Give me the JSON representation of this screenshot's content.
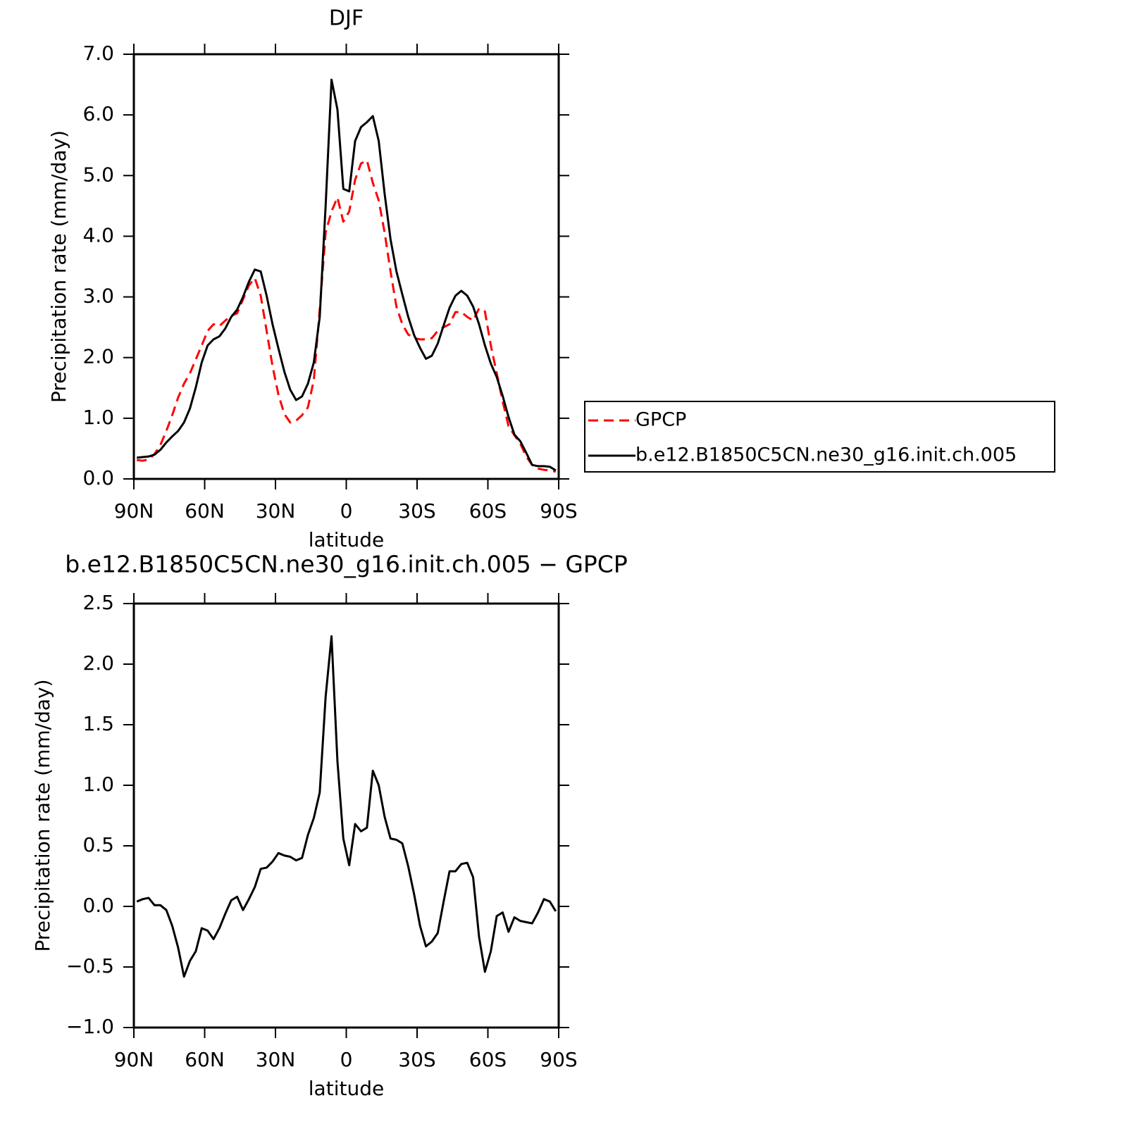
{
  "chart_data": [
    {
      "type": "line",
      "title": "DJF",
      "xlabel": "latitude",
      "ylabel": "Precipitation rate (mm/day)",
      "x": [
        88.75,
        86.25,
        83.75,
        81.25,
        78.75,
        76.25,
        73.75,
        71.25,
        68.75,
        66.25,
        63.75,
        61.25,
        58.75,
        56.25,
        53.75,
        51.25,
        48.75,
        46.25,
        43.75,
        41.25,
        38.75,
        36.25,
        33.75,
        31.25,
        28.75,
        26.25,
        23.75,
        21.25,
        18.75,
        16.25,
        13.75,
        11.25,
        8.75,
        6.25,
        3.75,
        1.25,
        -1.25,
        -3.75,
        -6.25,
        -8.75,
        -11.25,
        -13.75,
        -16.25,
        -18.75,
        -21.25,
        -23.75,
        -26.25,
        -28.75,
        -31.25,
        -33.75,
        -36.25,
        -38.75,
        -41.25,
        -43.75,
        -46.25,
        -48.75,
        -51.25,
        -53.75,
        -56.25,
        -58.75,
        -61.25,
        -63.75,
        -66.25,
        -68.75,
        -71.25,
        -73.75,
        -76.25,
        -78.75,
        -81.25,
        -83.75,
        -86.25,
        -88.75
      ],
      "xlim": [
        90,
        -90
      ],
      "xticks": [
        {
          "value": 90,
          "label": "90N"
        },
        {
          "value": 60,
          "label": "60N"
        },
        {
          "value": 30,
          "label": "30N"
        },
        0,
        {
          "value": -30,
          "label": "30S"
        },
        {
          "value": -60,
          "label": "60S"
        },
        {
          "value": -90,
          "label": "90S"
        }
      ],
      "ylim": [
        0,
        7
      ],
      "yticks": [
        {
          "value": 0,
          "label": "0.0"
        },
        {
          "value": 1,
          "label": "1.0"
        },
        {
          "value": 2,
          "label": "2.0"
        },
        {
          "value": 3,
          "label": "3.0"
        },
        {
          "value": 4,
          "label": "4.0"
        },
        {
          "value": 5,
          "label": "5.0"
        },
        {
          "value": 6,
          "label": "6.0"
        },
        {
          "value": 7,
          "label": "7.0"
        }
      ],
      "legend": "right",
      "series": [
        {
          "name": "GPCP",
          "color": "#ff0000",
          "linestyle": "dashed",
          "values": [
            0.31,
            0.3,
            0.32,
            0.41,
            0.56,
            0.79,
            1.05,
            1.34,
            1.57,
            1.74,
            1.97,
            2.2,
            2.44,
            2.55,
            2.52,
            2.61,
            2.69,
            2.73,
            2.96,
            3.19,
            3.31,
            3.02,
            2.44,
            1.86,
            1.39,
            1.07,
            0.93,
            0.96,
            1.05,
            1.18,
            1.63,
            2.79,
            4.06,
            4.41,
            4.64,
            4.24,
            4.41,
            4.93,
            5.2,
            5.25,
            4.88,
            4.59,
            4.06,
            3.42,
            2.84,
            2.55,
            2.38,
            2.32,
            2.3,
            2.3,
            2.32,
            2.44,
            2.5,
            2.55,
            2.75,
            2.75,
            2.67,
            2.61,
            2.81,
            2.76,
            2.2,
            1.74,
            1.28,
            0.87,
            0.72,
            0.58,
            0.37,
            0.23,
            0.17,
            0.15,
            0.14,
            0.12
          ]
        },
        {
          "name": "b.e12.B1850C5CN.ne30_g16.init.ch.005",
          "color": "#000000",
          "linestyle": "solid",
          "values": [
            0.35,
            0.36,
            0.37,
            0.4,
            0.48,
            0.6,
            0.7,
            0.79,
            0.93,
            1.16,
            1.51,
            1.92,
            2.2,
            2.3,
            2.35,
            2.48,
            2.67,
            2.79,
            3.0,
            3.25,
            3.45,
            3.42,
            3.02,
            2.55,
            2.15,
            1.77,
            1.47,
            1.3,
            1.36,
            1.57,
            1.92,
            2.67,
            4.5,
            6.58,
            6.09,
            4.78,
            4.74,
            5.57,
            5.8,
            5.88,
            5.98,
            5.57,
            4.7,
            3.95,
            3.42,
            3.04,
            2.67,
            2.37,
            2.16,
            1.98,
            2.03,
            2.23,
            2.53,
            2.82,
            3.02,
            3.1,
            3.02,
            2.84,
            2.55,
            2.2,
            1.9,
            1.68,
            1.37,
            1.02,
            0.73,
            0.62,
            0.43,
            0.23,
            0.21,
            0.21,
            0.2,
            0.14
          ]
        }
      ]
    },
    {
      "type": "line",
      "title": "b.e12.B1850C5CN.ne30_g16.init.ch.005 − GPCP",
      "xlabel": "latitude",
      "ylabel": "Precipitation rate (mm/day)",
      "x": [
        88.75,
        86.25,
        83.75,
        81.25,
        78.75,
        76.25,
        73.75,
        71.25,
        68.75,
        66.25,
        63.75,
        61.25,
        58.75,
        56.25,
        53.75,
        51.25,
        48.75,
        46.25,
        43.75,
        41.25,
        38.75,
        36.25,
        33.75,
        31.25,
        28.75,
        26.25,
        23.75,
        21.25,
        18.75,
        16.25,
        13.75,
        11.25,
        8.75,
        6.25,
        3.75,
        1.25,
        -1.25,
        -3.75,
        -6.25,
        -8.75,
        -11.25,
        -13.75,
        -16.25,
        -18.75,
        -21.25,
        -23.75,
        -26.25,
        -28.75,
        -31.25,
        -33.75,
        -36.25,
        -38.75,
        -41.25,
        -43.75,
        -46.25,
        -48.75,
        -51.25,
        -53.75,
        -56.25,
        -58.75,
        -61.25,
        -63.75,
        -66.25,
        -68.75,
        -71.25,
        -73.75,
        -76.25,
        -78.75,
        -81.25,
        -83.75,
        -86.25,
        -88.75
      ],
      "xlim": [
        90,
        -90
      ],
      "xticks": [
        {
          "value": 90,
          "label": "90N"
        },
        {
          "value": 60,
          "label": "60N"
        },
        {
          "value": 30,
          "label": "30N"
        },
        0,
        {
          "value": -30,
          "label": "30S"
        },
        {
          "value": -60,
          "label": "60S"
        },
        {
          "value": -90,
          "label": "90S"
        }
      ],
      "ylim": [
        -1,
        2.5
      ],
      "yticks": [
        {
          "value": -1,
          "label": "−1.0"
        },
        {
          "value": -0.5,
          "label": "−0.5"
        },
        {
          "value": 0,
          "label": "0.0"
        },
        0.5,
        {
          "value": 1,
          "label": "1.0"
        },
        1.5,
        {
          "value": 2,
          "label": "2.0"
        },
        2.5
      ],
      "color": "#000000",
      "values": [
        0.04,
        0.06,
        0.07,
        0.01,
        0.01,
        -0.03,
        -0.16,
        -0.34,
        -0.58,
        -0.45,
        -0.37,
        -0.18,
        -0.2,
        -0.27,
        -0.18,
        -0.06,
        0.05,
        0.08,
        -0.03,
        0.06,
        0.16,
        0.31,
        0.32,
        0.37,
        0.44,
        0.42,
        0.41,
        0.38,
        0.4,
        0.59,
        0.73,
        0.94,
        1.73,
        2.23,
        1.2,
        0.56,
        0.34,
        0.68,
        0.62,
        0.65,
        1.12,
        1.0,
        0.74,
        0.56,
        0.55,
        0.52,
        0.33,
        0.1,
        -0.16,
        -0.33,
        -0.29,
        -0.22,
        0.04,
        0.29,
        0.29,
        0.35,
        0.36,
        0.24,
        -0.25,
        -0.54,
        -0.37,
        -0.08,
        -0.05,
        -0.21,
        -0.09,
        -0.12,
        -0.13,
        -0.14,
        -0.05,
        0.06,
        0.04,
        -0.04
      ]
    }
  ]
}
